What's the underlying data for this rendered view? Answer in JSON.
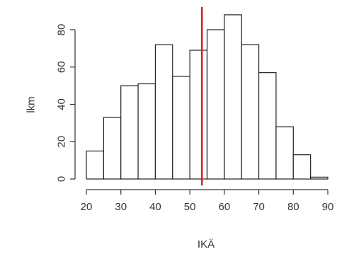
{
  "chart_data": {
    "type": "bar",
    "subtype": "histogram",
    "title": "",
    "xlabel": "IKÄ",
    "ylabel": "lkm",
    "bin_edges": [
      20,
      25,
      30,
      35,
      40,
      45,
      50,
      55,
      60,
      65,
      70,
      75,
      80,
      85,
      90
    ],
    "values": [
      15,
      33,
      50,
      51,
      72,
      55,
      69,
      80,
      88,
      72,
      57,
      28,
      13,
      1
    ],
    "x_ticks": [
      "20",
      "30",
      "40",
      "50",
      "60",
      "70",
      "80",
      "90"
    ],
    "y_ticks": [
      "0",
      "20",
      "40",
      "60",
      "80"
    ],
    "xlim": [
      20,
      90
    ],
    "ylim": [
      0,
      88
    ],
    "grid": false,
    "reference_line": {
      "x": 53.5,
      "color": "#d62424"
    },
    "bar_fill": "#ffffff",
    "bar_edge": "#222222"
  }
}
